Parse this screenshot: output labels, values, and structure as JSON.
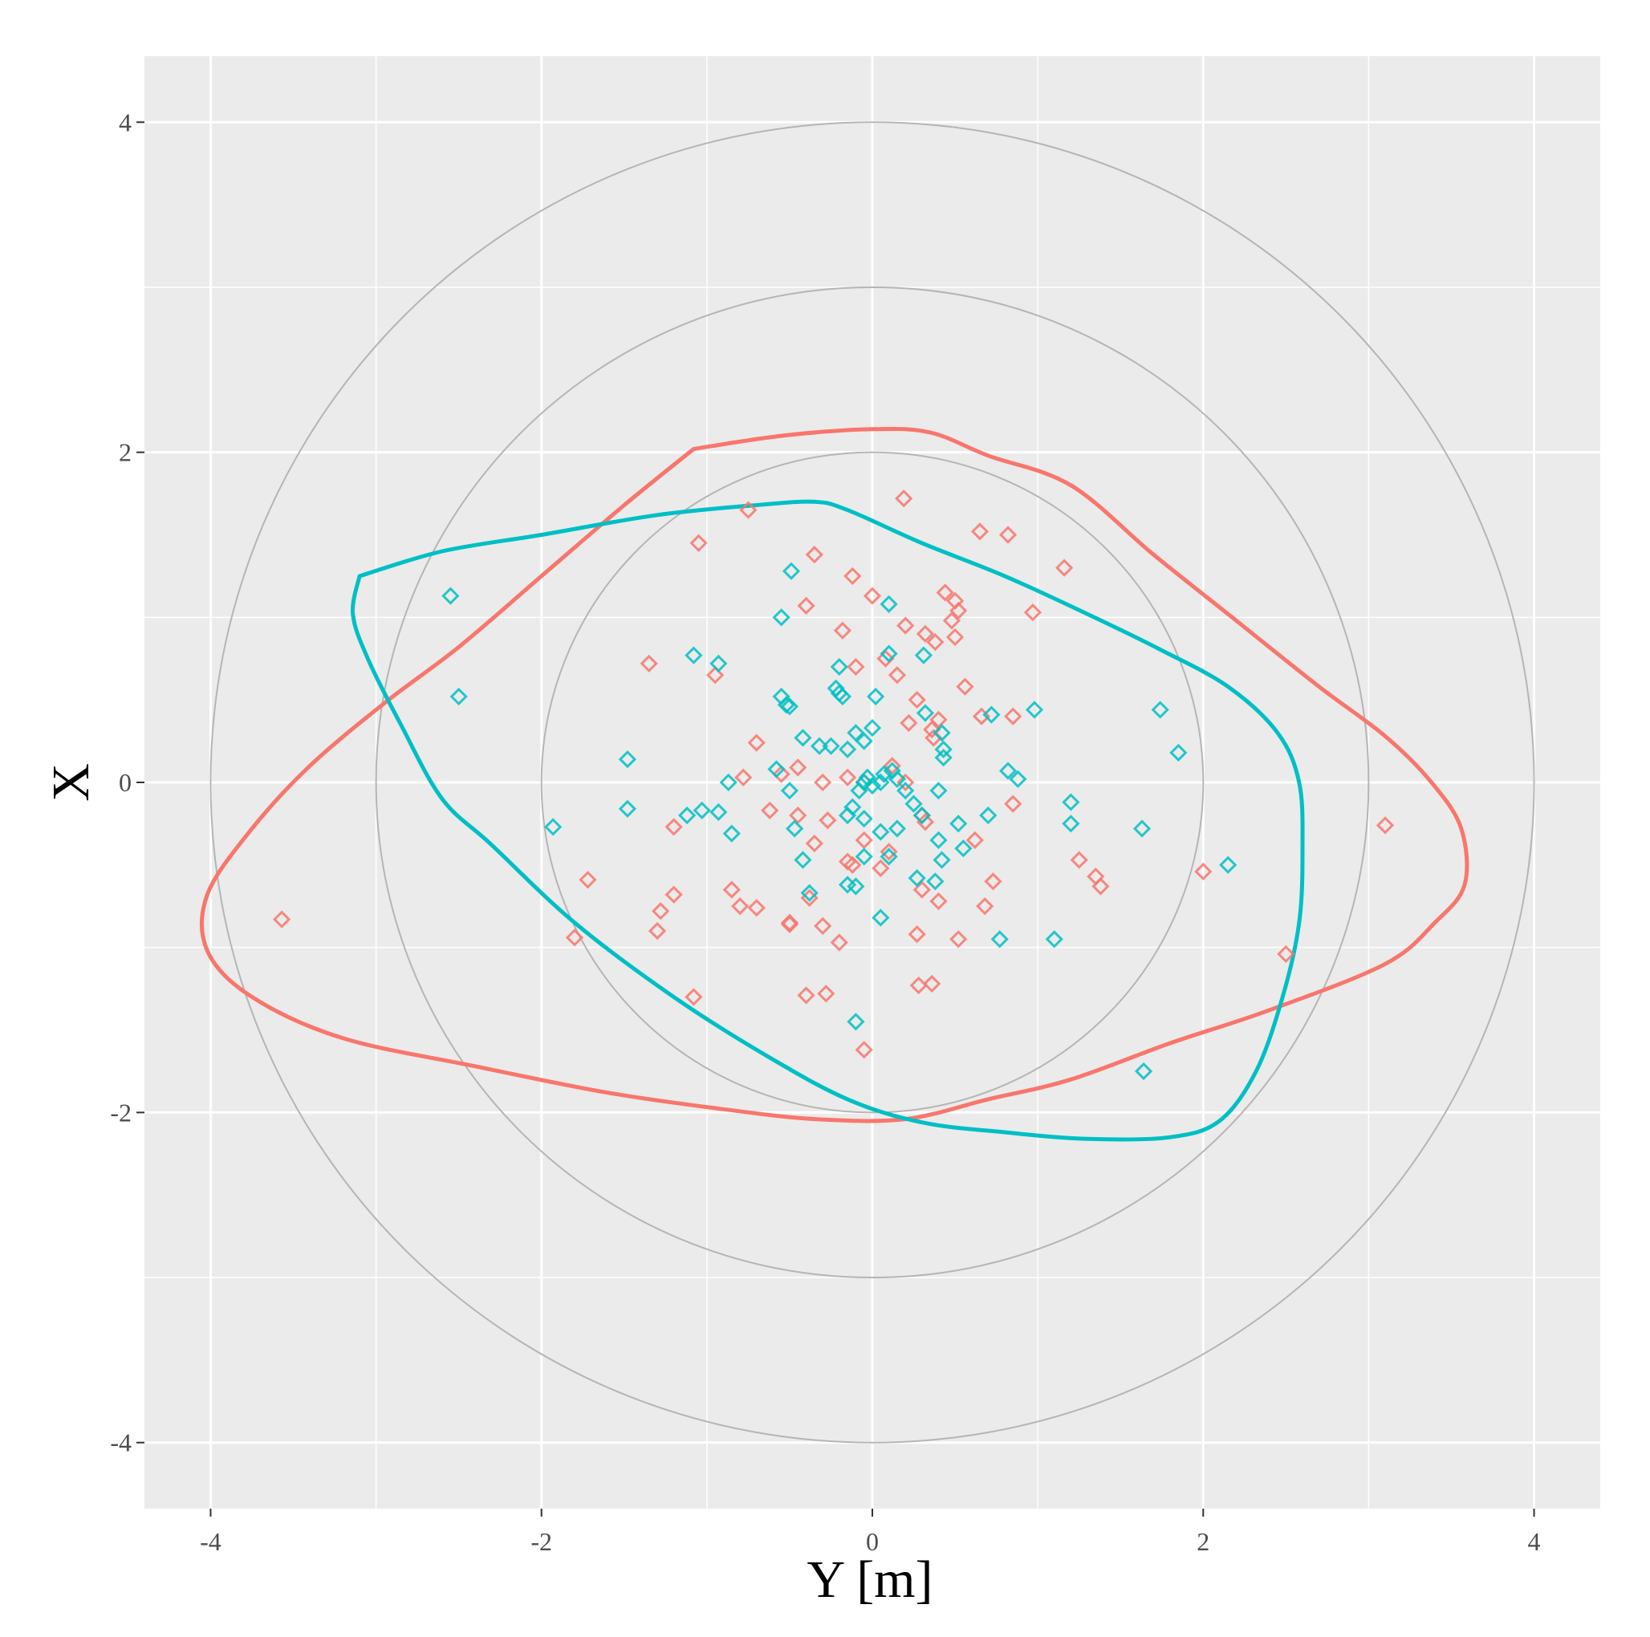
{
  "chart_data": {
    "type": "scatter",
    "title": "",
    "xlabel": "Y [m]",
    "ylabel": "X",
    "xlim": [
      -4.4,
      4.4
    ],
    "ylim": [
      -4.4,
      4.4
    ],
    "x_ticks": [
      "-4",
      "-2",
      "0",
      "2",
      "4"
    ],
    "y_ticks": [
      "4",
      "2",
      "0",
      "-2",
      "-4"
    ],
    "x_tick_values": [
      -4,
      -2,
      0,
      2,
      4
    ],
    "y_tick_values": [
      4,
      2,
      0,
      -2,
      -4
    ],
    "grid": true,
    "reference_circles_radii": [
      2,
      3,
      4
    ],
    "series": [
      {
        "color": "#F8766D",
        "points": [
          [
            -3.57,
            -0.83
          ],
          [
            -1.72,
            -0.59
          ],
          [
            -1.8,
            -0.94
          ],
          [
            -1.3,
            -0.9
          ],
          [
            -1.28,
            -0.78
          ],
          [
            -1.2,
            -0.68
          ],
          [
            -1.08,
            -1.3
          ],
          [
            -1.35,
            0.72
          ],
          [
            -0.95,
            0.65
          ],
          [
            -1.05,
            1.45
          ],
          [
            -0.75,
            1.65
          ],
          [
            -0.35,
            1.38
          ],
          [
            -0.4,
            1.07
          ],
          [
            -0.12,
            1.25
          ],
          [
            0.0,
            1.13
          ],
          [
            -0.18,
            0.92
          ],
          [
            -0.1,
            0.7
          ],
          [
            0.08,
            0.75
          ],
          [
            0.15,
            0.65
          ],
          [
            0.2,
            0.95
          ],
          [
            0.19,
            1.72
          ],
          [
            0.32,
            0.9
          ],
          [
            0.38,
            0.85
          ],
          [
            0.44,
            1.15
          ],
          [
            0.5,
            1.1
          ],
          [
            0.52,
            1.04
          ],
          [
            0.48,
            0.98
          ],
          [
            0.5,
            0.88
          ],
          [
            0.56,
            0.58
          ],
          [
            0.65,
            1.52
          ],
          [
            0.82,
            1.5
          ],
          [
            0.97,
            1.03
          ],
          [
            1.16,
            1.3
          ],
          [
            0.85,
            0.4
          ],
          [
            0.66,
            0.4
          ],
          [
            0.4,
            0.38
          ],
          [
            0.27,
            0.5
          ],
          [
            0.37,
            0.27
          ],
          [
            0.36,
            0.32
          ],
          [
            0.22,
            0.36
          ],
          [
            -0.7,
            0.24
          ],
          [
            -0.78,
            0.03
          ],
          [
            -0.55,
            0.05
          ],
          [
            -0.45,
            0.09
          ],
          [
            -0.3,
            0.0
          ],
          [
            -0.15,
            0.03
          ],
          [
            -0.05,
            0.0
          ],
          [
            0.12,
            0.1
          ],
          [
            0.2,
            0.0
          ],
          [
            -0.62,
            -0.17
          ],
          [
            -1.2,
            -0.27
          ],
          [
            -0.35,
            -0.37
          ],
          [
            -0.45,
            -0.2
          ],
          [
            -0.27,
            -0.23
          ],
          [
            -0.12,
            -0.5
          ],
          [
            -0.15,
            -0.48
          ],
          [
            -0.05,
            -0.35
          ],
          [
            0.1,
            -0.42
          ],
          [
            0.05,
            -0.52
          ],
          [
            0.3,
            -0.2
          ],
          [
            0.32,
            -0.24
          ],
          [
            0.4,
            -0.72
          ],
          [
            0.3,
            -0.65
          ],
          [
            0.27,
            -0.92
          ],
          [
            0.52,
            -0.95
          ],
          [
            0.68,
            -0.75
          ],
          [
            0.73,
            -0.6
          ],
          [
            0.85,
            -0.13
          ],
          [
            0.62,
            -0.35
          ],
          [
            -0.8,
            -0.75
          ],
          [
            -0.85,
            -0.65
          ],
          [
            -0.7,
            -0.76
          ],
          [
            -0.5,
            -0.85
          ],
          [
            -0.3,
            -0.87
          ],
          [
            -0.2,
            -0.97
          ],
          [
            -0.38,
            -0.7
          ],
          [
            -0.5,
            -0.86
          ],
          [
            -0.4,
            -1.29
          ],
          [
            -0.28,
            -1.28
          ],
          [
            -0.05,
            -1.62
          ],
          [
            0.28,
            -1.23
          ],
          [
            0.36,
            -1.22
          ],
          [
            1.25,
            -0.47
          ],
          [
            1.35,
            -0.57
          ],
          [
            1.38,
            -0.63
          ],
          [
            2.0,
            -0.54
          ],
          [
            3.1,
            -0.26
          ],
          [
            2.5,
            -1.04
          ]
        ]
      },
      {
        "color": "#00BFC4",
        "points": [
          [
            -2.55,
            1.13
          ],
          [
            -2.5,
            0.52
          ],
          [
            -1.48,
            0.14
          ],
          [
            -1.48,
            -0.16
          ],
          [
            -1.93,
            -0.27
          ],
          [
            -1.08,
            0.77
          ],
          [
            -0.93,
            0.72
          ],
          [
            -1.12,
            -0.2
          ],
          [
            -1.03,
            -0.17
          ],
          [
            -0.93,
            -0.18
          ],
          [
            -0.85,
            -0.31
          ],
          [
            -0.87,
            0.0
          ],
          [
            -0.49,
            1.28
          ],
          [
            -0.55,
            1.0
          ],
          [
            -0.55,
            0.52
          ],
          [
            -0.52,
            0.47
          ],
          [
            -0.5,
            0.46
          ],
          [
            -0.2,
            0.7
          ],
          [
            -0.22,
            0.57
          ],
          [
            -0.2,
            0.54
          ],
          [
            -0.18,
            0.52
          ],
          [
            -0.1,
            0.3
          ],
          [
            -0.05,
            0.25
          ],
          [
            0.0,
            0.33
          ],
          [
            0.02,
            0.52
          ],
          [
            0.1,
            0.78
          ],
          [
            0.1,
            1.08
          ],
          [
            0.31,
            0.77
          ],
          [
            0.32,
            0.42
          ],
          [
            0.42,
            0.3
          ],
          [
            0.43,
            0.15
          ],
          [
            0.43,
            0.2
          ],
          [
            0.72,
            0.41
          ],
          [
            0.98,
            0.44
          ],
          [
            1.74,
            0.44
          ],
          [
            1.85,
            0.18
          ],
          [
            1.2,
            -0.12
          ],
          [
            1.2,
            -0.25
          ],
          [
            1.63,
            -0.28
          ],
          [
            2.15,
            -0.5
          ],
          [
            1.1,
            -0.95
          ],
          [
            0.77,
            -0.95
          ],
          [
            0.88,
            0.02
          ],
          [
            0.82,
            0.07
          ],
          [
            0.7,
            -0.2
          ],
          [
            0.52,
            -0.25
          ],
          [
            0.55,
            -0.4
          ],
          [
            0.4,
            -0.35
          ],
          [
            0.42,
            -0.47
          ],
          [
            0.38,
            -0.6
          ],
          [
            0.4,
            -0.05
          ],
          [
            0.3,
            -0.2
          ],
          [
            0.25,
            -0.13
          ],
          [
            0.2,
            -0.05
          ],
          [
            0.15,
            0.02
          ],
          [
            0.12,
            0.07
          ],
          [
            0.07,
            0.05
          ],
          [
            0.05,
            0.0
          ],
          [
            0.0,
            -0.02
          ],
          [
            -0.03,
            0.03
          ],
          [
            -0.05,
            0.0
          ],
          [
            -0.08,
            -0.05
          ],
          [
            -0.12,
            -0.15
          ],
          [
            -0.15,
            -0.2
          ],
          [
            -0.05,
            -0.22
          ],
          [
            0.05,
            -0.3
          ],
          [
            0.15,
            -0.28
          ],
          [
            0.1,
            -0.45
          ],
          [
            -0.05,
            -0.45
          ],
          [
            -0.15,
            0.2
          ],
          [
            -0.25,
            0.22
          ],
          [
            -0.32,
            0.22
          ],
          [
            -0.42,
            0.27
          ],
          [
            -0.5,
            -0.05
          ],
          [
            -0.58,
            0.08
          ],
          [
            -0.47,
            -0.28
          ],
          [
            -0.42,
            -0.47
          ],
          [
            -0.38,
            -0.67
          ],
          [
            -0.15,
            -0.62
          ],
          [
            -0.1,
            -0.63
          ],
          [
            0.27,
            -0.58
          ],
          [
            0.05,
            -0.82
          ],
          [
            -0.1,
            -1.45
          ],
          [
            1.64,
            -1.75
          ]
        ]
      }
    ],
    "contours": [
      {
        "color": "#F8766D",
        "path": [
          [
            -1.08,
            2.02
          ],
          [
            -0.55,
            2.1
          ],
          [
            0.0,
            2.14
          ],
          [
            0.35,
            2.12
          ],
          [
            0.7,
            1.98
          ],
          [
            1.2,
            1.8
          ],
          [
            1.7,
            1.38
          ],
          [
            2.2,
            0.98
          ],
          [
            2.7,
            0.58
          ],
          [
            3.1,
            0.28
          ],
          [
            3.38,
            0.0
          ],
          [
            3.56,
            -0.28
          ],
          [
            3.58,
            -0.62
          ],
          [
            3.4,
            -0.85
          ],
          [
            3.1,
            -1.1
          ],
          [
            2.4,
            -1.38
          ],
          [
            1.8,
            -1.58
          ],
          [
            1.2,
            -1.8
          ],
          [
            0.7,
            -1.92
          ],
          [
            0.2,
            -2.04
          ],
          [
            -0.35,
            -2.04
          ],
          [
            -0.9,
            -1.98
          ],
          [
            -1.6,
            -1.88
          ],
          [
            -2.4,
            -1.72
          ],
          [
            -3.2,
            -1.55
          ],
          [
            -3.75,
            -1.3
          ],
          [
            -4.02,
            -1.02
          ],
          [
            -4.02,
            -0.68
          ],
          [
            -3.75,
            -0.28
          ],
          [
            -3.4,
            0.1
          ],
          [
            -2.95,
            0.48
          ],
          [
            -2.5,
            0.82
          ],
          [
            -2.0,
            1.25
          ],
          [
            -1.5,
            1.68
          ],
          [
            -1.08,
            2.02
          ]
        ]
      },
      {
        "color": "#00BFC4",
        "path": [
          [
            -3.1,
            1.25
          ],
          [
            -2.6,
            1.4
          ],
          [
            -2.0,
            1.5
          ],
          [
            -1.3,
            1.62
          ],
          [
            -0.7,
            1.68
          ],
          [
            -0.35,
            1.7
          ],
          [
            -0.15,
            1.65
          ],
          [
            0.3,
            1.45
          ],
          [
            0.8,
            1.25
          ],
          [
            1.3,
            1.02
          ],
          [
            1.75,
            0.8
          ],
          [
            2.15,
            0.58
          ],
          [
            2.45,
            0.3
          ],
          [
            2.58,
            0.0
          ],
          [
            2.6,
            -0.4
          ],
          [
            2.58,
            -0.85
          ],
          [
            2.48,
            -1.3
          ],
          [
            2.32,
            -1.75
          ],
          [
            2.1,
            -2.05
          ],
          [
            1.8,
            -2.15
          ],
          [
            1.3,
            -2.16
          ],
          [
            0.8,
            -2.12
          ],
          [
            0.3,
            -2.06
          ],
          [
            -0.15,
            -1.92
          ],
          [
            -0.65,
            -1.65
          ],
          [
            -1.2,
            -1.3
          ],
          [
            -1.8,
            -0.85
          ],
          [
            -2.3,
            -0.38
          ],
          [
            -2.6,
            -0.1
          ],
          [
            -2.85,
            0.35
          ],
          [
            -3.05,
            0.75
          ],
          [
            -3.14,
            1.02
          ],
          [
            -3.1,
            1.25
          ]
        ]
      }
    ]
  }
}
